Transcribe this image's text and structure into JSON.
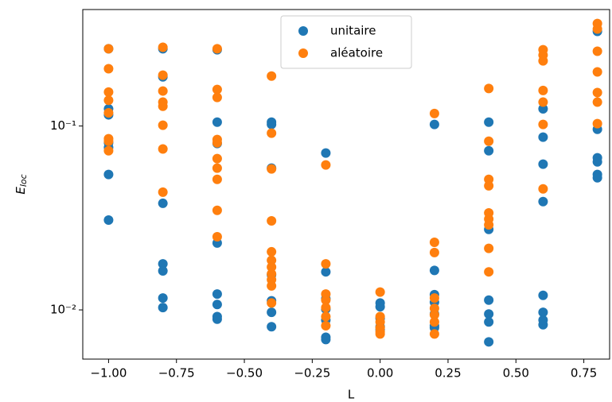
{
  "chart_data": {
    "type": "scatter",
    "xlabel": "L",
    "ylabel": {
      "text": "E",
      "subscript": "loc"
    },
    "log_y": true,
    "legend": "upper center",
    "xlim": [
      -1.095,
      0.845
    ],
    "ylim": [
      0.0054,
      0.43
    ],
    "xticks": [
      {
        "value": -1,
        "label": "−1.00"
      },
      {
        "value": -0.75,
        "label": "−0.75"
      },
      {
        "value": -0.5,
        "label": "−0.50"
      },
      {
        "value": -0.25,
        "label": "−0.25"
      },
      {
        "value": 0,
        "label": "0.00"
      },
      {
        "value": 0.25,
        "label": "0.25"
      },
      {
        "value": 0.5,
        "label": "0.50"
      },
      {
        "value": 0.75,
        "label": "0.75"
      }
    ],
    "yticks": [
      {
        "value": 0.01,
        "label": "10⁻²"
      },
      {
        "value": 0.1,
        "label": "10⁻¹"
      }
    ],
    "series": [
      {
        "name": "unitaire",
        "color": "#1f77b4",
        "x": [
          -1,
          -1,
          -1,
          -1,
          -1,
          -1,
          -1,
          -0.8,
          -0.8,
          -0.8,
          -0.8,
          -0.8,
          -0.8,
          -0.8,
          -0.6,
          -0.6,
          -0.6,
          -0.6,
          -0.6,
          -0.6,
          -0.6,
          -0.6,
          -0.4,
          -0.4,
          -0.4,
          -0.4,
          -0.4,
          -0.4,
          -0.4,
          -0.2,
          -0.2,
          -0.2,
          -0.2,
          -0.2,
          -0.2,
          -0.2,
          0,
          0,
          0,
          0,
          0,
          0.2,
          0.2,
          0.2,
          0.2,
          0.2,
          0.2,
          0.2,
          0.4,
          0.4,
          0.4,
          0.4,
          0.4,
          0.4,
          0.4,
          0.6,
          0.6,
          0.6,
          0.6,
          0.6,
          0.6,
          0.6,
          0.6,
          0.8,
          0.8,
          0.8,
          0.8,
          0.8,
          0.8
        ],
        "values": [
          0.263,
          0.124,
          0.115,
          0.081,
          0.0764,
          0.0545,
          0.0308,
          0.263,
          0.185,
          0.038,
          0.0178,
          0.0163,
          0.0116,
          0.0103,
          0.26,
          0.105,
          0.0803,
          0.0231,
          0.0122,
          0.0107,
          0.0092,
          0.0089,
          0.105,
          0.102,
          0.059,
          0.0155,
          0.0112,
          0.0097,
          0.0081,
          0.0713,
          0.0161,
          0.0115,
          0.0101,
          0.0088,
          0.0071,
          0.0069,
          0.0109,
          0.0104,
          0.009,
          0.0081,
          0.0078,
          0.102,
          0.0164,
          0.0121,
          0.011,
          0.0095,
          0.0082,
          0.008,
          0.105,
          0.0734,
          0.0274,
          0.0113,
          0.0095,
          0.0086,
          0.0067,
          0.124,
          0.087,
          0.062,
          0.0388,
          0.012,
          0.0097,
          0.0083,
          0.0088,
          0.327,
          0.096,
          0.0672,
          0.0638,
          0.0545,
          0.0523
        ]
      },
      {
        "name": "aléatoire",
        "color": "#ff7f0e",
        "x": [
          -1,
          -1,
          -1,
          -1,
          -1,
          -1,
          -1,
          -1,
          -0.8,
          -0.8,
          -0.8,
          -0.8,
          -0.8,
          -0.8,
          -0.8,
          -0.8,
          -0.6,
          -0.6,
          -0.6,
          -0.6,
          -0.6,
          -0.6,
          -0.6,
          -0.6,
          -0.6,
          -0.6,
          -0.4,
          -0.4,
          -0.4,
          -0.4,
          -0.4,
          -0.4,
          -0.4,
          -0.4,
          -0.4,
          -0.4,
          -0.4,
          -0.2,
          -0.2,
          -0.2,
          -0.2,
          -0.2,
          -0.2,
          -0.2,
          0,
          0,
          0,
          0,
          0,
          0,
          0.2,
          0.2,
          0.2,
          0.2,
          0.2,
          0.2,
          0.2,
          0.2,
          0.4,
          0.4,
          0.4,
          0.4,
          0.4,
          0.4,
          0.4,
          0.4,
          0.4,
          0.6,
          0.6,
          0.6,
          0.6,
          0.6,
          0.6,
          0.6,
          0.8,
          0.8,
          0.8,
          0.8,
          0.8,
          0.8,
          0.8
        ],
        "values": [
          0.263,
          0.205,
          0.153,
          0.138,
          0.118,
          0.0853,
          0.0827,
          0.0734,
          0.268,
          0.189,
          0.155,
          0.135,
          0.128,
          0.101,
          0.075,
          0.0437,
          0.263,
          0.158,
          0.143,
          0.0844,
          0.081,
          0.0665,
          0.059,
          0.0513,
          0.0348,
          0.025,
          0.187,
          0.0914,
          0.0584,
          0.0305,
          0.0207,
          0.0186,
          0.0171,
          0.0157,
          0.0146,
          0.0135,
          0.0109,
          0.0614,
          0.0178,
          0.0122,
          0.0113,
          0.0103,
          0.0092,
          0.0082,
          0.0125,
          0.0092,
          0.0086,
          0.008,
          0.0076,
          0.0074,
          0.117,
          0.0233,
          0.0205,
          0.0116,
          0.0102,
          0.0094,
          0.0086,
          0.0074,
          0.16,
          0.0827,
          0.0513,
          0.0473,
          0.0337,
          0.0312,
          0.029,
          0.0216,
          0.0161,
          0.26,
          0.243,
          0.226,
          0.156,
          0.135,
          0.102,
          0.0455,
          0.361,
          0.337,
          0.255,
          0.197,
          0.152,
          0.135,
          0.103
        ]
      }
    ]
  }
}
